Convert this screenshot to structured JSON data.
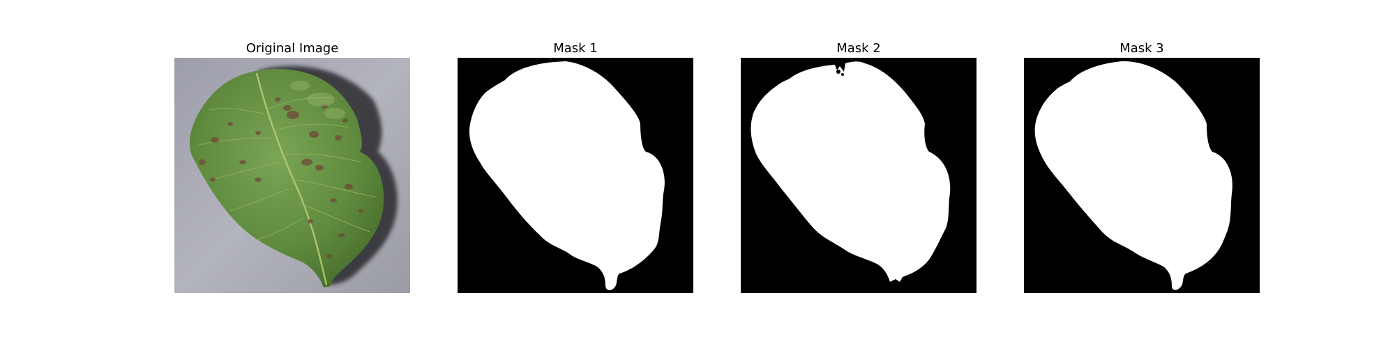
{
  "figure": {
    "panels": [
      {
        "title": "Original Image"
      },
      {
        "title": "Mask 1"
      },
      {
        "title": "Mask 2"
      },
      {
        "title": "Mask 3"
      }
    ],
    "colors": {
      "background": "#ffffff",
      "mask_foreground": "#ffffff",
      "mask_background": "#000000",
      "leaf_green": "#5f8a3d",
      "surface_gray": "#a7a8b2"
    }
  }
}
